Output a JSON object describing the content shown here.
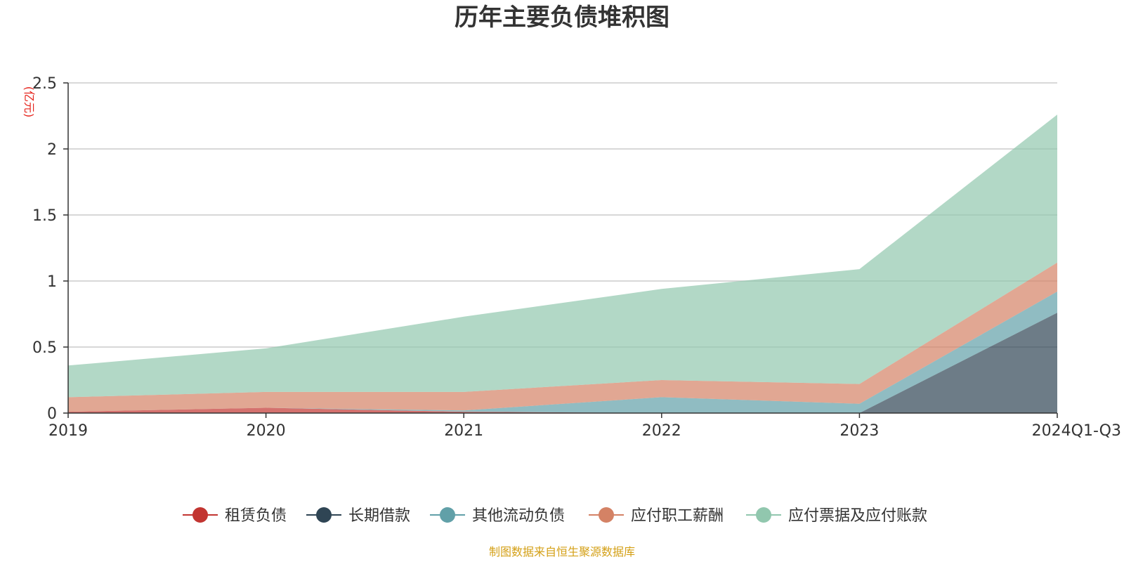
{
  "chart_data": {
    "type": "area",
    "stacked": true,
    "title": "历年主要负债堆积图",
    "unit": "(亿元)",
    "categories": [
      "2019",
      "2020",
      "2021",
      "2022",
      "2023",
      "2024Q1-Q3"
    ],
    "ylim": [
      0,
      2.5
    ],
    "yticks": [
      "0",
      "0.5",
      "1",
      "1.5",
      "2",
      "2.5"
    ],
    "grid": true,
    "legend_position": "bottom",
    "series": [
      {
        "name": "租赁负债",
        "color": "#c23531",
        "values": [
          0.01,
          0.04,
          0.01,
          0,
          0,
          0
        ]
      },
      {
        "name": "长期借款",
        "color": "#2f4554",
        "values": [
          0,
          0,
          0,
          0,
          0,
          0.76
        ]
      },
      {
        "name": "其他流动负债",
        "color": "#61a0a8",
        "values": [
          0,
          0,
          0.01,
          0.12,
          0.07,
          0.16
        ]
      },
      {
        "name": "应付职工薪酬",
        "color": "#d48265",
        "values": [
          0.11,
          0.12,
          0.14,
          0.13,
          0.15,
          0.22
        ]
      },
      {
        "name": "应付票据及应付账款",
        "color": "#91c7ae",
        "values": [
          0.24,
          0.33,
          0.57,
          0.69,
          0.87,
          1.12
        ]
      }
    ],
    "source": "制图数据来自恒生聚源数据库"
  }
}
